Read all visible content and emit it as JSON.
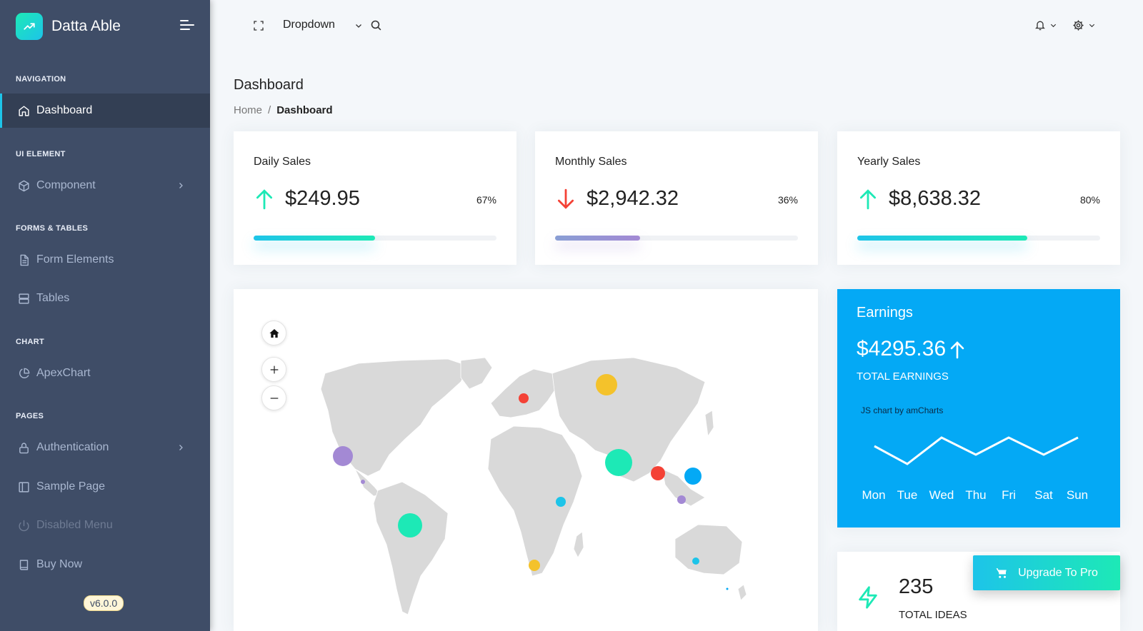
{
  "app": {
    "name": "Datta Able",
    "version": "v6.0.0"
  },
  "sidebar": {
    "captions": {
      "navigation": "NAVIGATION",
      "ui_element": "UI ELEMENT",
      "forms_tables": "FORMS & TABLES",
      "chart": "CHART",
      "pages": "PAGES"
    },
    "items": {
      "dashboard": "Dashboard",
      "component": "Component",
      "form_elements": "Form Elements",
      "tables": "Tables",
      "apexchart": "ApexChart",
      "authentication": "Authentication",
      "sample_page": "Sample Page",
      "disabled_menu": "Disabled Menu",
      "buy_now": "Buy Now"
    }
  },
  "header": {
    "dropdown_label": "Dropdown"
  },
  "page": {
    "title": "Dashboard",
    "breadcrumb": {
      "home": "Home",
      "separator": "/",
      "current": "Dashboard"
    }
  },
  "stats": [
    {
      "title": "Daily Sales",
      "value": "$249.95",
      "percent": "67%",
      "progress": 0.5,
      "trend": "up",
      "color": "#1de9b6"
    },
    {
      "title": "Monthly Sales",
      "value": "$2,942.32",
      "percent": "36%",
      "progress": 0.35,
      "trend": "down",
      "color": "#a389d4"
    },
    {
      "title": "Yearly Sales",
      "value": "$8,638.32",
      "percent": "80%",
      "progress": 0.7,
      "trend": "up",
      "color": "#1de9b6"
    }
  ],
  "earnings": {
    "title": "Earnings",
    "value": "$4295.36",
    "label": "TOTAL EARNINGS",
    "credit": "JS chart by amCharts",
    "days": [
      "Mon",
      "Tue",
      "Wed",
      "Thu",
      "Fri",
      "Sat",
      "Sun"
    ],
    "color": "#04a9f5"
  },
  "ideas": {
    "value": "235",
    "label": "TOTAL IDEAS"
  },
  "upgrade": {
    "label": "Upgrade To Pro"
  }
}
